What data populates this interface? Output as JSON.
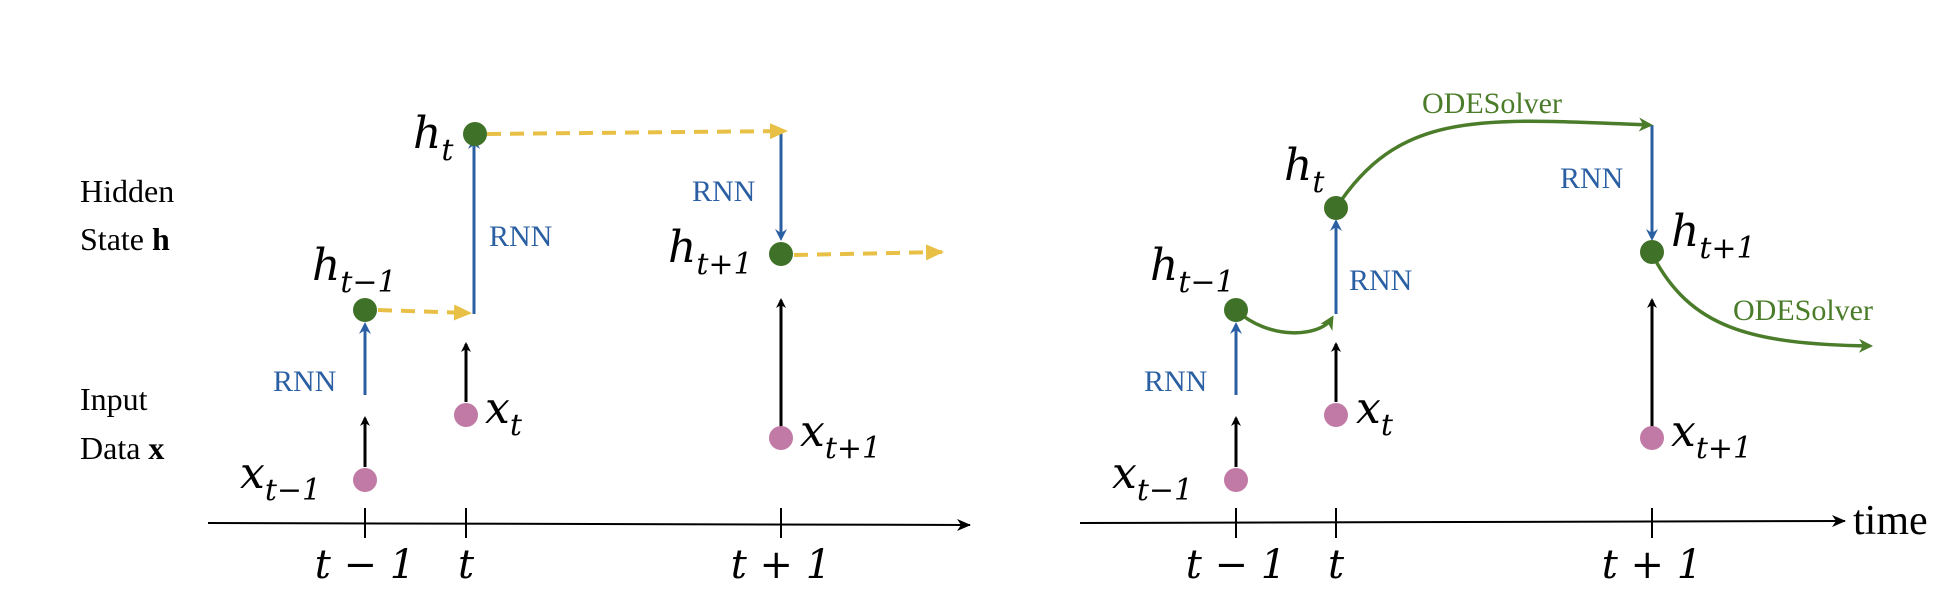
{
  "colors": {
    "hidden_node": "#3f7228",
    "input_node": "#c07aa5",
    "rnn": "#2b5fa3",
    "ode": "#4a7c2a",
    "dashed": "#e8c046",
    "axis": "#000000"
  },
  "row_labels": {
    "hidden_line1": "Hidden",
    "hidden_line2_prefix": "State ",
    "hidden_line2_bold": "h",
    "input_line1": "Input",
    "input_line2_prefix": "Data ",
    "input_line2_bold": "x"
  },
  "axis": {
    "label": "time",
    "ticks": {
      "t_minus_1": "t − 1",
      "t": "t",
      "t_plus_1": "t + 1"
    }
  },
  "nodes": {
    "h_base": "h",
    "x_base": "x",
    "sub_t_minus_1": "t−1",
    "sub_t": "t",
    "sub_t_plus_1": "t+1"
  },
  "labels": {
    "rnn": "RNN",
    "ode": "ODESolver"
  }
}
